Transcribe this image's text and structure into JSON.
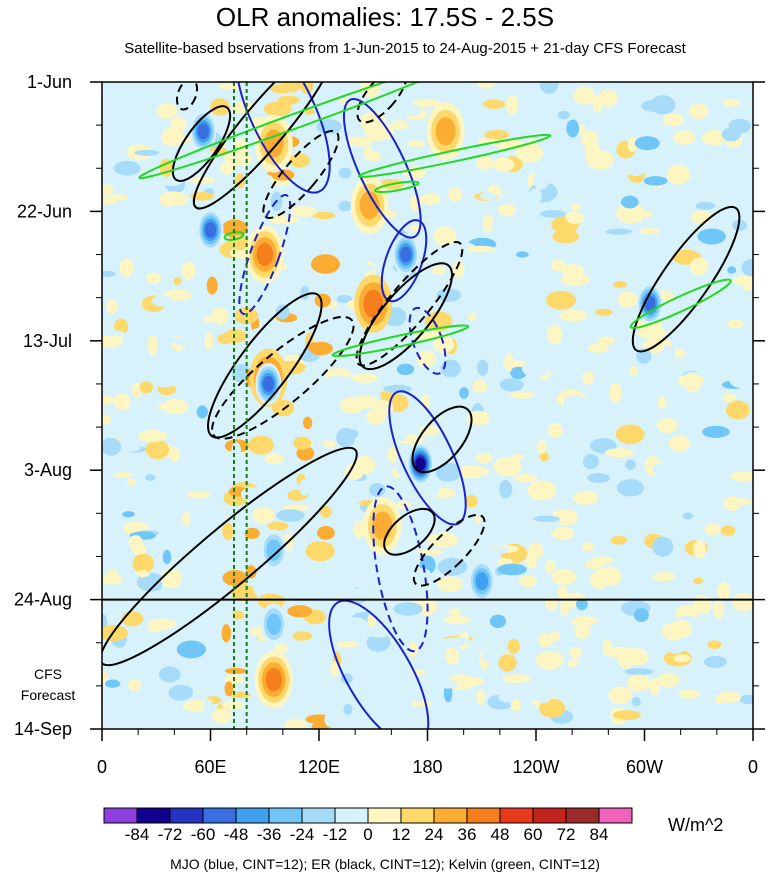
{
  "chart_data": {
    "type": "heatmap",
    "title": "OLR anomalies: 17.5S - 2.5S",
    "subtitle": "Satellite-based bservations from 1-Jun-2015 to 24-Aug-2015 + 21-day CFS Forecast",
    "x_ticks": [
      "0",
      "60E",
      "120E",
      "180",
      "120W",
      "60W",
      "0"
    ],
    "x_tick_values": [
      0,
      60,
      120,
      180,
      240,
      300,
      360
    ],
    "y_ticks": [
      "1-Jun",
      "22-Jun",
      "13-Jul",
      "3-Aug",
      "24-Aug",
      "14-Sep"
    ],
    "y_tick_day_offsets": [
      0,
      21,
      42,
      63,
      84,
      105
    ],
    "xlim": [
      0,
      360
    ],
    "ylim_days": [
      0,
      105
    ],
    "observation_end_line": "24-Aug",
    "forecast_label": [
      "CFS",
      "Forecast"
    ],
    "colorbar": {
      "levels": [
        -84,
        -72,
        -60,
        -48,
        -36,
        -24,
        -12,
        0,
        12,
        24,
        36,
        48,
        60,
        72,
        84
      ],
      "labels": [
        "-84",
        "-72",
        "-60",
        "-48",
        "-36",
        "-24",
        "-12",
        "0",
        "12",
        "24",
        "36",
        "48",
        "60",
        "72",
        "84"
      ],
      "colors": [
        "#8f3fe0",
        "#12008f",
        "#2433c4",
        "#3a6ee0",
        "#3fa0f0",
        "#6fc6f7",
        "#a6dcfa",
        "#d8f2fb",
        "#fdf6c2",
        "#fdd86a",
        "#fbad33",
        "#f67f1d",
        "#e63a1b",
        "#c2231e",
        "#9c2a2a",
        "#ee62b9"
      ],
      "units": "W/m^2"
    },
    "features": [
      {
        "type": "warm",
        "lon": 95,
        "day": 10,
        "value": 30
      },
      {
        "type": "warm",
        "lon": 90,
        "day": 28,
        "value": 40
      },
      {
        "type": "warm",
        "lon": 92,
        "day": 48,
        "value": 36
      },
      {
        "type": "warm",
        "lon": 150,
        "day": 36,
        "value": 36
      },
      {
        "type": "warm",
        "lon": 148,
        "day": 20,
        "value": 28
      },
      {
        "type": "warm",
        "lon": 190,
        "day": 8,
        "value": 30
      },
      {
        "type": "warm",
        "lon": 95,
        "day": 97,
        "value": 38
      },
      {
        "type": "warm",
        "lon": 155,
        "day": 72,
        "value": 30
      },
      {
        "type": "cold",
        "lon": 56,
        "day": 8,
        "value": -50
      },
      {
        "type": "cold",
        "lon": 60,
        "day": 24,
        "value": -60
      },
      {
        "type": "cold",
        "lon": 168,
        "day": 28,
        "value": -60
      },
      {
        "type": "cold",
        "lon": 176,
        "day": 62,
        "value": -84
      },
      {
        "type": "cold",
        "lon": 303,
        "day": 36,
        "value": -50
      },
      {
        "type": "cold",
        "lon": 95,
        "day": 76,
        "value": -36
      },
      {
        "type": "cold",
        "lon": 92,
        "day": 49,
        "value": -60
      },
      {
        "type": "cold",
        "lon": 210,
        "day": 81,
        "value": -40
      },
      {
        "type": "cold",
        "lon": 95,
        "day": 88,
        "value": -30
      }
    ],
    "contours": {
      "mjo": [
        {
          "lon": 100,
          "day": 5,
          "rx": 18,
          "ry": 55,
          "rot": -25,
          "dashed": false
        },
        {
          "lon": 155,
          "day": 14,
          "rx": 13,
          "ry": 48,
          "rot": -25,
          "dashed": false
        },
        {
          "lon": 167,
          "day": 29,
          "rx": 10,
          "ry": 27,
          "rot": 20,
          "dashed": false
        },
        {
          "lon": 180,
          "day": 61,
          "rx": 14,
          "ry": 46,
          "rot": -25,
          "dashed": false
        },
        {
          "lon": 153,
          "day": 96,
          "rx": 18,
          "ry": 52,
          "rot": -30,
          "dashed": false
        },
        {
          "lon": 90,
          "day": 28,
          "rx": 8,
          "ry": 40,
          "rot": 20,
          "dashed": true
        },
        {
          "lon": 180,
          "day": 42,
          "rx": 8,
          "ry": 22,
          "rot": -20,
          "dashed": true
        },
        {
          "lon": 165,
          "day": 79,
          "rx": 13,
          "ry": 53,
          "rot": -10,
          "dashed": true
        }
      ],
      "er": [
        {
          "lon": 90,
          "day": 7,
          "rx": 12,
          "ry": 68,
          "rot": 40,
          "dashed": false
        },
        {
          "lon": 90,
          "day": 46,
          "rx": 14,
          "ry": 56,
          "rot": 37,
          "dashed": false
        },
        {
          "lon": 70,
          "day": 77,
          "rx": 16,
          "ry": 105,
          "rot": 50,
          "dashed": false
        },
        {
          "lon": 168,
          "day": 38,
          "rx": 13,
          "ry": 42,
          "rot": 40,
          "dashed": false
        },
        {
          "lon": 188,
          "day": 58,
          "rx": 11,
          "ry": 25,
          "rot": 40,
          "dashed": false
        },
        {
          "lon": 170,
          "day": 73,
          "rx": 9,
          "ry": 19,
          "rot": 50,
          "dashed": false
        },
        {
          "lon": 323,
          "day": 32,
          "rx": 13,
          "ry": 55,
          "rot": 35,
          "dashed": false
        },
        {
          "lon": 55,
          "day": 10,
          "rx": 9,
          "ry": 28,
          "rot": 35,
          "dashed": false
        },
        {
          "lon": 110,
          "day": 15,
          "rx": 9,
          "ry": 35,
          "rot": 40,
          "dashed": true
        },
        {
          "lon": 100,
          "day": 48,
          "rx": 14,
          "ry": 57,
          "rot": 50,
          "dashed": true
        },
        {
          "lon": 170,
          "day": 36,
          "rx": 11,
          "ry": 50,
          "rot": 40,
          "dashed": true
        },
        {
          "lon": 192,
          "day": 76,
          "rx": 9,
          "ry": 30,
          "rot": 45,
          "dashed": true
        },
        {
          "lon": 155,
          "day": 2,
          "rx": 8,
          "ry": 22,
          "rot": 40,
          "dashed": true
        },
        {
          "lon": 47,
          "day": 2,
          "rx": 5,
          "ry": 10,
          "rot": 20,
          "dashed": true
        }
      ],
      "kelvin": [
        {
          "lon": 110,
          "day": 6,
          "rx": 4,
          "ry": 109,
          "rot": 70
        },
        {
          "lon": 195,
          "day": 12,
          "rx": 3,
          "ry": 62,
          "rot": 78
        },
        {
          "lon": 320,
          "day": 36,
          "rx": 4,
          "ry": 35,
          "rot": 65
        },
        {
          "lon": 165,
          "day": 42,
          "rx": 3,
          "ry": 44,
          "rot": 78
        },
        {
          "lon": 163,
          "day": 17,
          "rx": 2,
          "ry": 14,
          "rot": 80
        },
        {
          "lon": 73,
          "day": 25,
          "rx": 2,
          "ry": 6,
          "rot": 80
        }
      ]
    },
    "vertical_reference_lines": [
      73,
      80
    ]
  },
  "footer": "MJO (blue, CINT=12); ER (black, CINT=12); Kelvin (green, CINT=12)"
}
